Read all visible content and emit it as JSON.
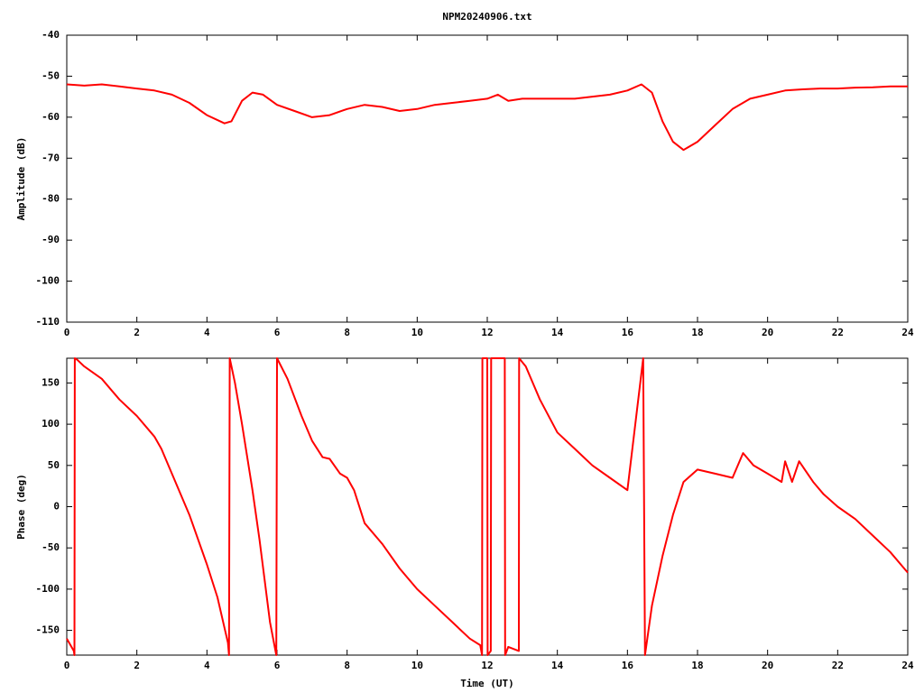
{
  "chart_data": [
    {
      "type": "line",
      "title": "NPM20240906.txt",
      "ylabel": "Amplitude (dB)",
      "color": "#ff0000",
      "xlim": [
        0,
        24
      ],
      "xticks": [
        0,
        2,
        4,
        6,
        8,
        10,
        12,
        14,
        16,
        18,
        20,
        22,
        24
      ],
      "ylim": [
        -110,
        -40
      ],
      "yticks": [
        -110,
        -100,
        -90,
        -80,
        -70,
        -60,
        -50,
        -40
      ],
      "x": [
        0,
        0.5,
        1,
        1.5,
        2,
        2.5,
        3,
        3.5,
        4,
        4.5,
        4.7,
        5,
        5.3,
        5.6,
        6,
        6.5,
        7,
        7.5,
        8,
        8.5,
        9,
        9.5,
        10,
        10.5,
        11,
        11.5,
        12,
        12.3,
        12.6,
        13,
        13.5,
        14,
        14.5,
        15,
        15.5,
        16,
        16.4,
        16.7,
        17,
        17.3,
        17.6,
        18,
        18.5,
        19,
        19.5,
        20,
        20.5,
        21,
        21.5,
        22,
        22.5,
        23,
        23.5,
        24
      ],
      "values": [
        -52,
        -52.3,
        -52,
        -52.5,
        -53,
        -53.5,
        -54.5,
        -56.5,
        -59.5,
        -61.5,
        -61,
        -56,
        -54,
        -54.5,
        -57,
        -58.5,
        -60,
        -59.5,
        -58,
        -57,
        -57.5,
        -58.5,
        -58,
        -57,
        -56.5,
        -56,
        -55.5,
        -54.5,
        -56,
        -55.5,
        -55.5,
        -55.5,
        -55.5,
        -55,
        -54.5,
        -53.5,
        -52,
        -54,
        -61,
        -66,
        -68,
        -66,
        -62,
        -58,
        -55.5,
        -54.5,
        -53.5,
        -53.2,
        -53,
        -53,
        -52.8,
        -52.7,
        -52.5,
        -52.5
      ]
    },
    {
      "type": "line",
      "ylabel": "Phase (deg)",
      "xlabel": "Time (UT)",
      "color": "#ff0000",
      "xlim": [
        0,
        24
      ],
      "xticks": [
        0,
        2,
        4,
        6,
        8,
        10,
        12,
        14,
        16,
        18,
        20,
        22,
        24
      ],
      "ylim": [
        -180,
        180
      ],
      "yticks": [
        -150,
        -100,
        -50,
        0,
        50,
        100,
        150
      ],
      "x": [
        0,
        0.2,
        0.22,
        0.23,
        0.3,
        0.5,
        1,
        1.5,
        2,
        2.5,
        2.7,
        3,
        3.5,
        4,
        4.3,
        4.6,
        4.63,
        4.65,
        4.8,
        5,
        5.3,
        5.5,
        5.8,
        5.98,
        6.0,
        6.3,
        6.7,
        7,
        7.3,
        7.5,
        7.8,
        8,
        8.2,
        8.5,
        9,
        9.5,
        10,
        10.5,
        11,
        11.5,
        11.8,
        11.85,
        11.86,
        12.0,
        12.01,
        12.1,
        12.11,
        12.5,
        12.51,
        12.6,
        12.9,
        12.91,
        13.1,
        13.5,
        14,
        14.5,
        15,
        15.5,
        16,
        16.45,
        16.5,
        16.7,
        17,
        17.3,
        17.6,
        18,
        18.5,
        19,
        19.3,
        19.6,
        20,
        20.4,
        20.5,
        20.7,
        20.9,
        21.3,
        21.6,
        22,
        22.5,
        23,
        23.5,
        24
      ],
      "values": [
        -160,
        -175,
        -180,
        180,
        178,
        170,
        155,
        130,
        110,
        85,
        70,
        40,
        -10,
        -70,
        -110,
        -165,
        -180,
        180,
        150,
        100,
        20,
        -40,
        -140,
        -180,
        180,
        155,
        110,
        80,
        60,
        58,
        40,
        35,
        20,
        -20,
        -45,
        -75,
        -100,
        -120,
        -140,
        -160,
        -168,
        -180,
        180,
        180,
        -180,
        -175,
        180,
        180,
        -180,
        -170,
        -175,
        180,
        170,
        130,
        90,
        70,
        50,
        35,
        20,
        180,
        -180,
        -120,
        -60,
        -10,
        30,
        45,
        40,
        35,
        65,
        50,
        40,
        30,
        55,
        30,
        55,
        30,
        15,
        0,
        -15,
        -35,
        -55,
        -80
      ]
    }
  ]
}
